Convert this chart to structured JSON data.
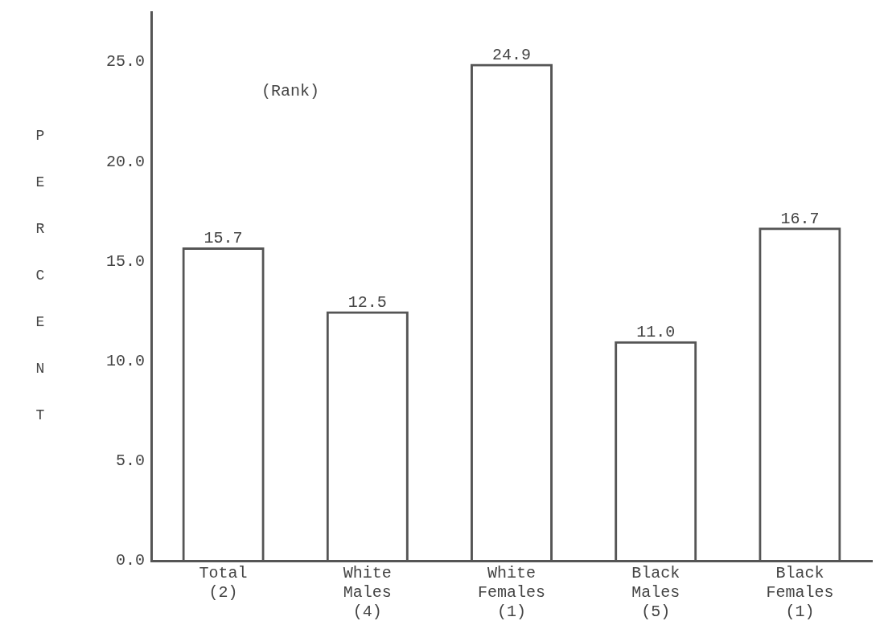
{
  "chart_data": {
    "type": "bar",
    "ylabel": "PERCENT",
    "categories": [
      "Total\n(2)",
      "White\nMales\n(4)",
      "White\nFemales\n(1)",
      "Black\nMales\n(5)",
      "Black\nFemales\n(1)"
    ],
    "values": [
      15.7,
      12.5,
      24.9,
      11.0,
      16.7
    ],
    "value_labels": [
      "15.7",
      "12.5",
      "24.9",
      "11.0",
      "16.7"
    ],
    "color": "#555555",
    "ylim": [
      0,
      27.5
    ],
    "yticks": [
      {
        "value": 0,
        "label": "0.0"
      },
      {
        "value": 5,
        "label": "5.0"
      },
      {
        "value": 10,
        "label": "10.0"
      },
      {
        "value": 15,
        "label": "15.0"
      },
      {
        "value": 20,
        "label": "20.0"
      },
      {
        "value": 25,
        "label": "25.0"
      }
    ],
    "grid": false,
    "legend": false,
    "annotations": [
      {
        "text": "(Rank)"
      }
    ]
  }
}
